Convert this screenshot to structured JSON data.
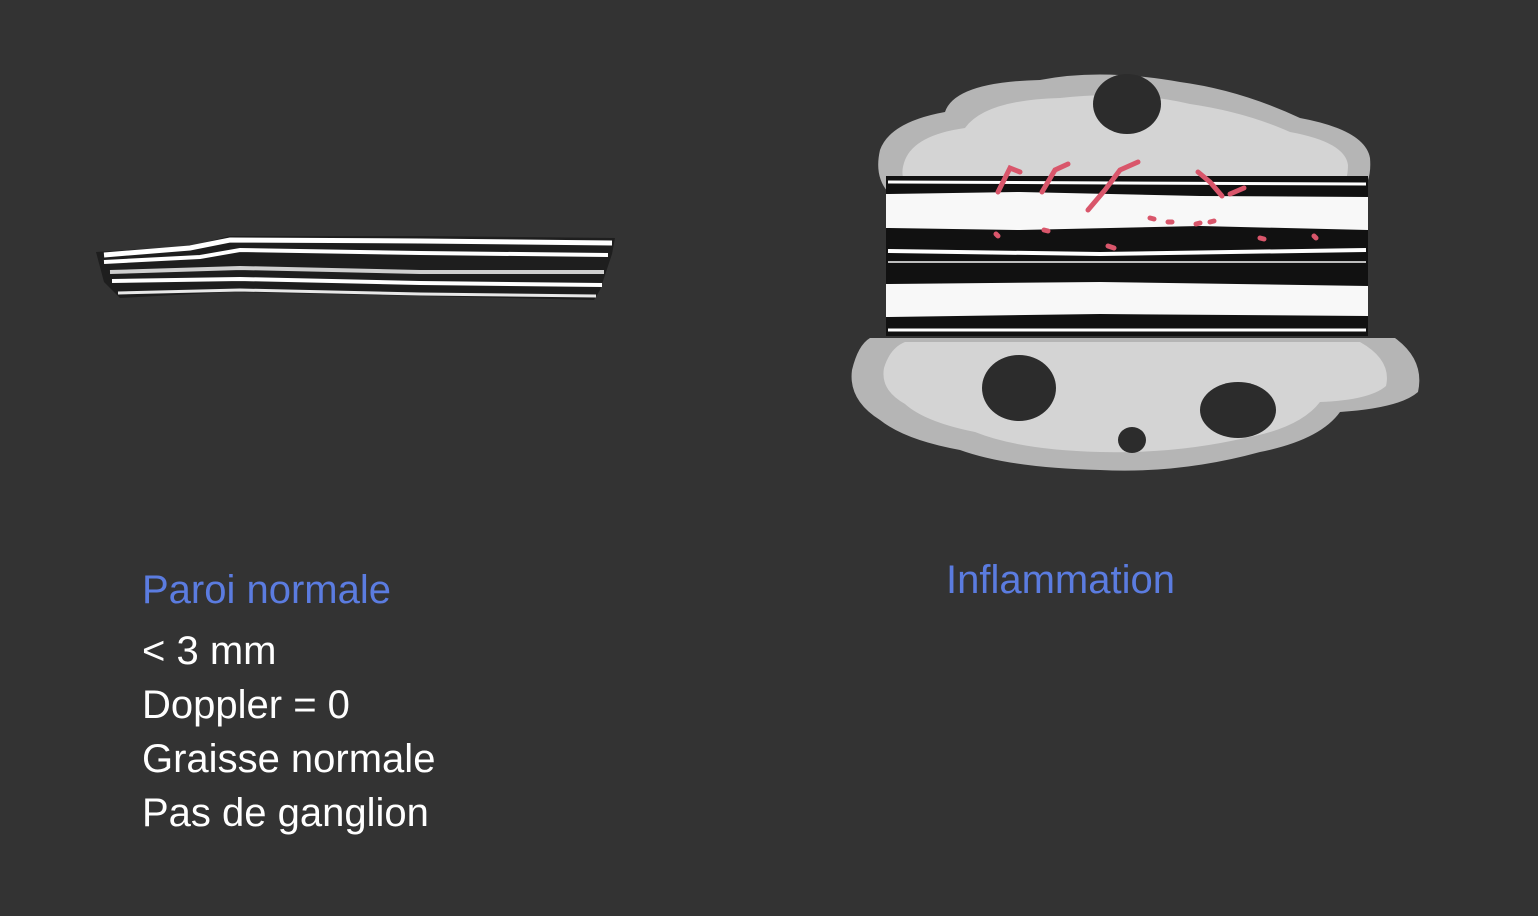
{
  "colors": {
    "background": "#333333",
    "title": "#5b7ce0",
    "text": "#ffffff",
    "fat_light": "#d4d4d4",
    "fat_mid": "#b5b5b5",
    "node": "#2c2c2c",
    "vessel": "#d9566b"
  },
  "panels": {
    "normal": {
      "title": "Paroi normale",
      "facts": [
        "< 3 mm",
        "Doppler = 0",
        "Graisse normale",
        "Pas de ganglion"
      ]
    },
    "inflammation": {
      "title": "Inflammation"
    }
  }
}
